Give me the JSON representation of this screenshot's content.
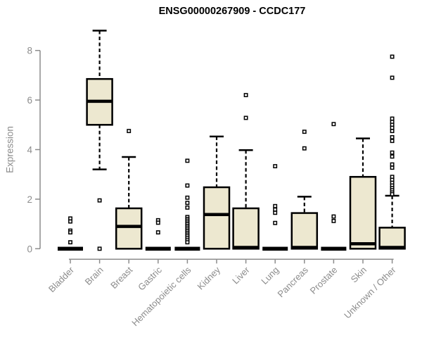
{
  "chart_data": {
    "type": "boxplot",
    "title": "ENSG00000267909 - CCDC177",
    "ylabel": "Expression",
    "xlabel": "",
    "yticks": [
      0,
      2,
      4,
      6,
      8
    ],
    "ylim": [
      -0.4,
      9.0
    ],
    "grid": false,
    "legend": "none",
    "colors": {
      "box_fill": "#ede8d0",
      "box_stroke": "#000000",
      "median": "#000000",
      "whisker": "#000000",
      "outlier_stroke": "#000000",
      "outlier_fill": "#ffffff",
      "axis": "#8c8c8c",
      "title": "#000000"
    },
    "categories": [
      "Bladder",
      "Brain",
      "Breast",
      "Gastric",
      "Hematopoietic cells",
      "Kidney",
      "Liver",
      "Lung",
      "Pancreas",
      "Prostate",
      "Skin",
      "Unknown / Other"
    ],
    "series": [
      {
        "name": "Bladder",
        "whisker_low": 0,
        "q1": 0,
        "median": 0,
        "q3": 0,
        "whisker_high": 0,
        "outliers": [
          1.22,
          1.1,
          0.73,
          0.66,
          0.26
        ]
      },
      {
        "name": "Brain",
        "whisker_low": 3.2,
        "q1": 5.0,
        "median": 5.95,
        "q3": 6.85,
        "whisker_high": 8.8,
        "outliers": [
          1.95,
          0
        ]
      },
      {
        "name": "Breast",
        "whisker_low": 0,
        "q1": 0,
        "median": 0.9,
        "q3": 1.63,
        "whisker_high": 3.7,
        "outliers": [
          4.75
        ]
      },
      {
        "name": "Gastric",
        "whisker_low": 0,
        "q1": 0,
        "median": 0,
        "q3": 0,
        "whisker_high": 0,
        "outliers": [
          1.15,
          1.05,
          0.66
        ]
      },
      {
        "name": "Hematopoietic cells",
        "whisker_low": 0,
        "q1": 0,
        "median": 0,
        "q3": 0,
        "whisker_high": 0,
        "outliers": [
          3.55,
          2.55,
          2.06,
          1.85,
          1.66,
          1.28,
          1.2,
          1.13,
          1.06,
          0.99,
          0.92,
          0.85,
          0.78,
          0.71,
          0.64,
          0.57,
          0.5,
          0.42,
          0.34,
          0.26
        ]
      },
      {
        "name": "Kidney",
        "whisker_low": 0,
        "q1": 0,
        "median": 1.38,
        "q3": 2.48,
        "whisker_high": 4.53,
        "outliers": []
      },
      {
        "name": "Liver",
        "whisker_low": 0,
        "q1": 0,
        "median": 0.05,
        "q3": 1.63,
        "whisker_high": 3.98,
        "outliers": [
          6.2,
          5.28
        ]
      },
      {
        "name": "Lung",
        "whisker_low": 0,
        "q1": 0,
        "median": 0,
        "q3": 0,
        "whisker_high": 0,
        "outliers": [
          3.33,
          1.72,
          1.58,
          1.45,
          1.04
        ]
      },
      {
        "name": "Pancreas",
        "whisker_low": 0,
        "q1": 0,
        "median": 0.05,
        "q3": 1.44,
        "whisker_high": 2.1,
        "outliers": [
          4.72,
          4.05
        ]
      },
      {
        "name": "Prostate",
        "whisker_low": 0,
        "q1": 0,
        "median": 0,
        "q3": 0,
        "whisker_high": 0,
        "outliers": [
          5.03,
          1.3,
          1.12
        ]
      },
      {
        "name": "Skin",
        "whisker_low": 0,
        "q1": 0,
        "median": 0.2,
        "q3": 2.9,
        "whisker_high": 4.45,
        "outliers": []
      },
      {
        "name": "Unknown / Other",
        "whisker_low": 0,
        "q1": 0,
        "median": 0.05,
        "q3": 0.85,
        "whisker_high": 2.14,
        "outliers": [
          7.75,
          6.9,
          5.25,
          5.12,
          5.0,
          4.88,
          4.75,
          4.5,
          4.35,
          3.88,
          3.72,
          3.4,
          3.27,
          2.9,
          2.78,
          2.66,
          2.55,
          2.45,
          2.36,
          2.27,
          2.2
        ]
      }
    ]
  }
}
